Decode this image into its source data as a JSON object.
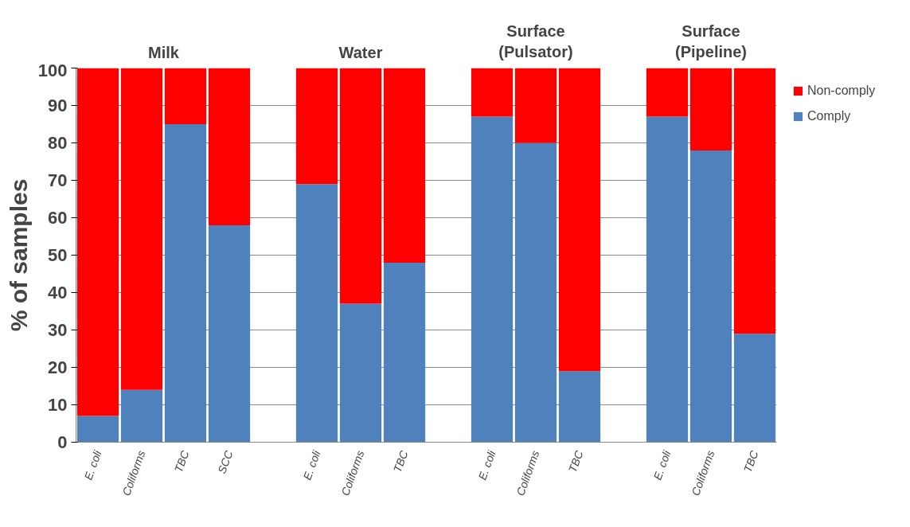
{
  "chart_data": {
    "type": "bar",
    "stacked": true,
    "ylabel": "% of samples",
    "categories": [
      "E. coli",
      "Coliforms",
      "TBC",
      "SCC",
      null,
      "E. coli",
      "Coliforms",
      "TBC",
      null,
      "E. coli",
      "Coliforms",
      "TBC",
      null,
      "E. coli",
      "Coliforms",
      "TBC"
    ],
    "series": [
      {
        "name": "Comply",
        "color": "#4f81bd",
        "values": [
          7,
          14,
          85,
          58,
          null,
          69,
          37,
          48,
          null,
          87,
          80,
          19,
          null,
          87,
          78,
          29
        ]
      },
      {
        "name": "Non-comply",
        "color": "#ff0000",
        "values": [
          93,
          86,
          15,
          42,
          null,
          31,
          63,
          52,
          null,
          13,
          20,
          81,
          null,
          13,
          22,
          71
        ]
      }
    ],
    "annotations": [
      "Milk",
      "Water",
      "Surface\n(Pulsator)",
      "Surface\n(Pipeline)"
    ],
    "ylim": [
      0,
      100
    ],
    "yticks": [
      0,
      10,
      20,
      30,
      40,
      50,
      60,
      70,
      80,
      90,
      100
    ],
    "grid": "y",
    "legend": "top right"
  }
}
